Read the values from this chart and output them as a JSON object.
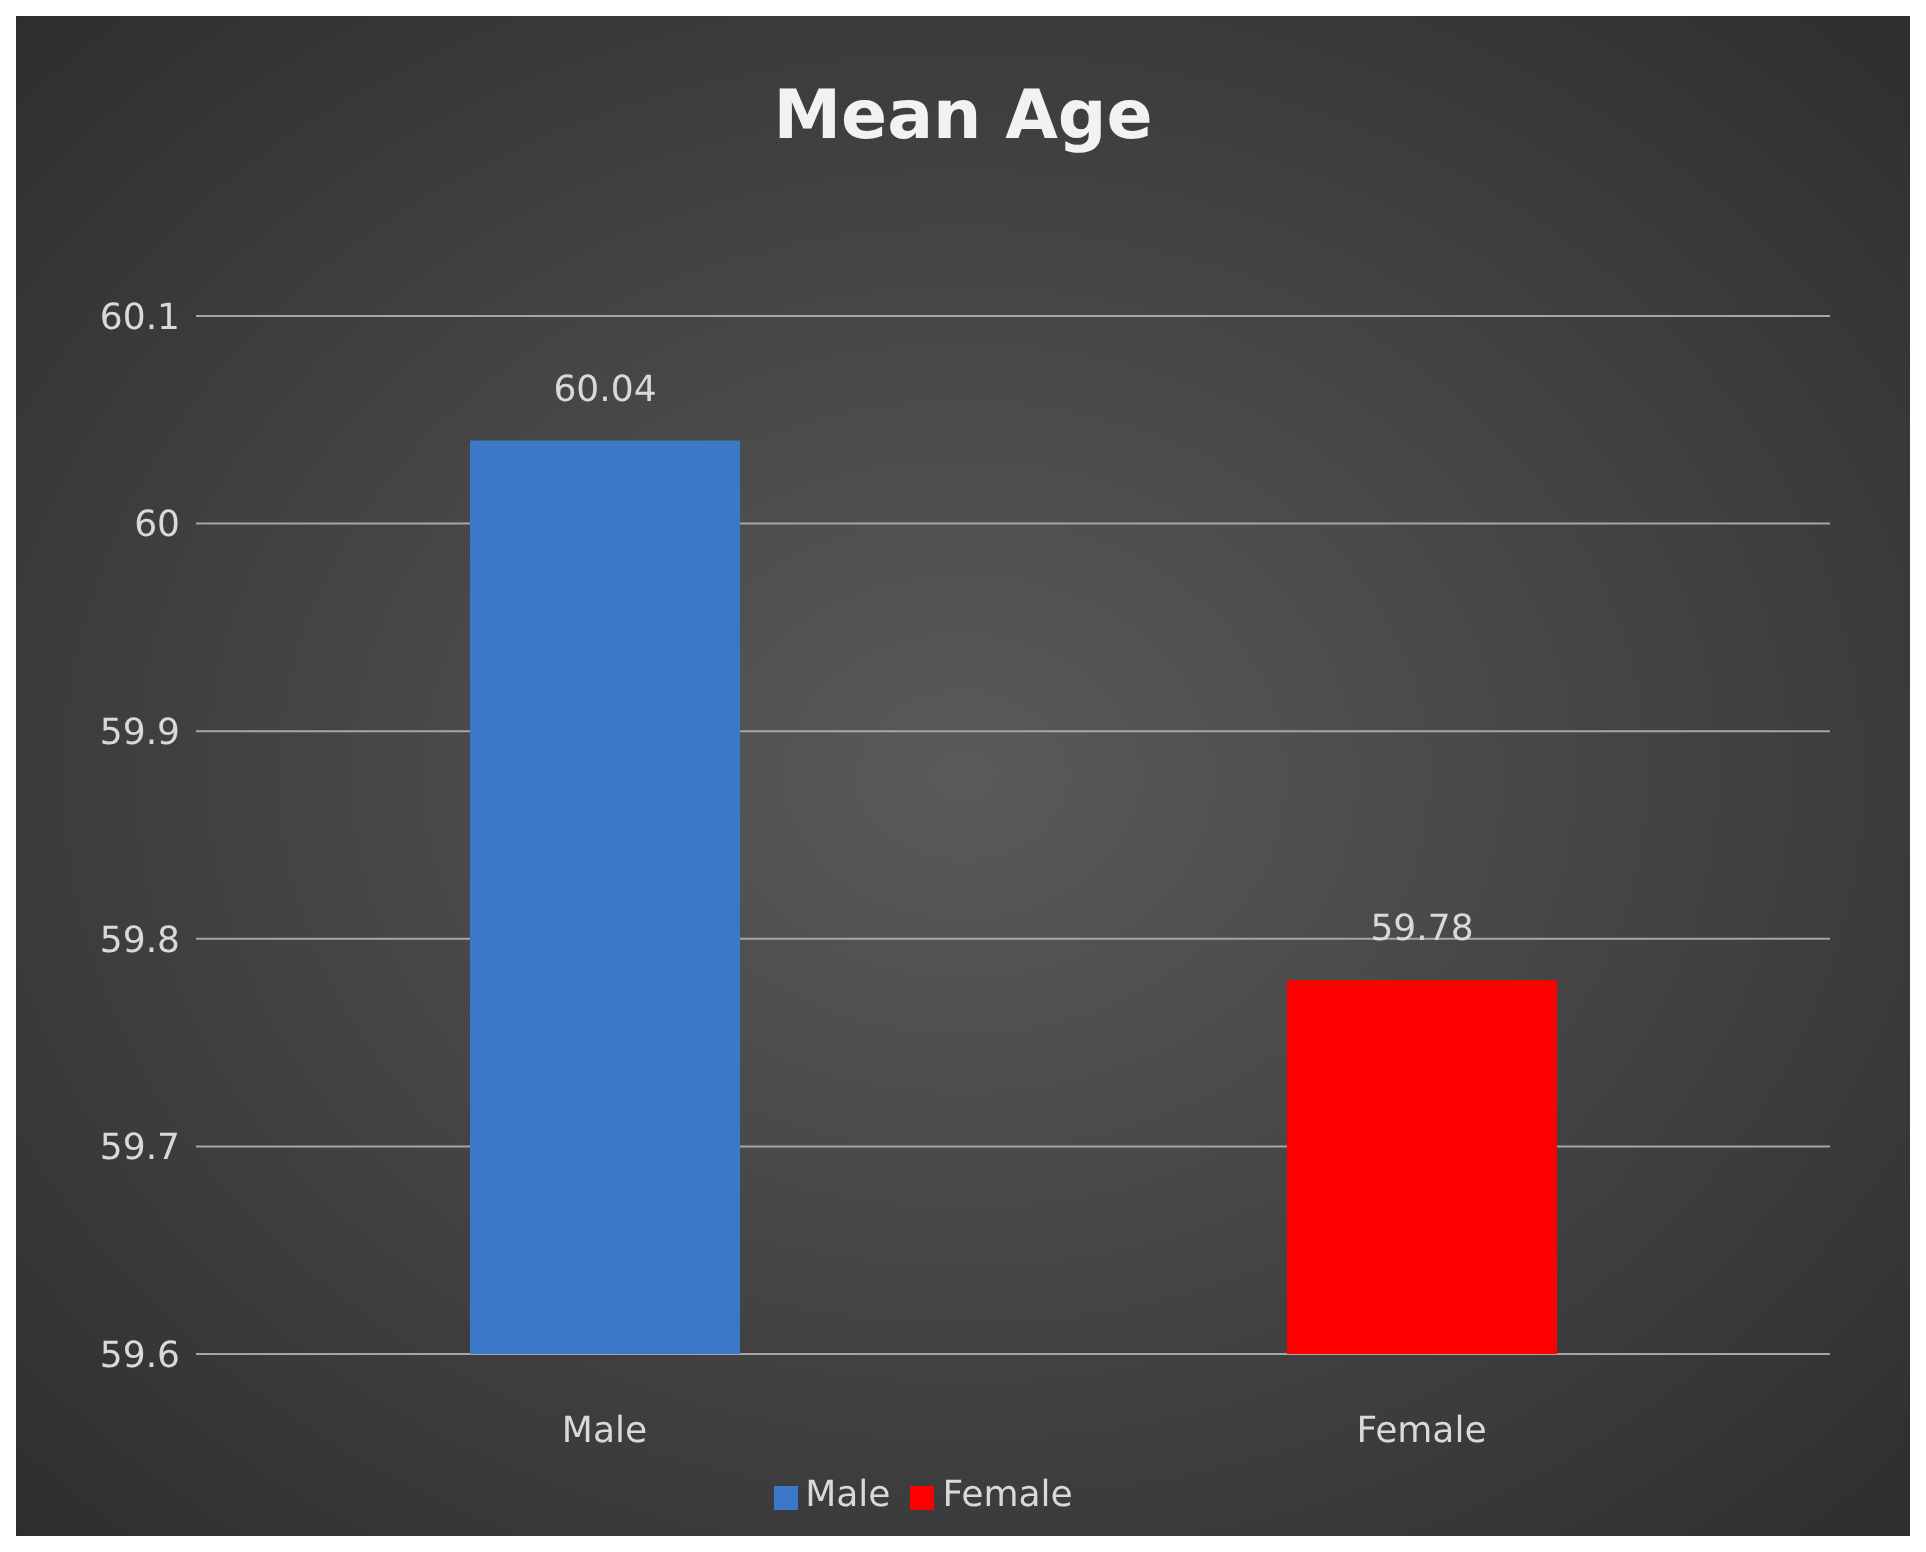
{
  "chart_data": {
    "type": "bar",
    "title": "Mean Age",
    "categories": [
      "Male",
      "Female"
    ],
    "series": [
      {
        "name": "Male",
        "color": "#3b78c8",
        "values": [
          60.04,
          null
        ]
      },
      {
        "name": "Female",
        "color": "#ff0000",
        "values": [
          null,
          59.78
        ]
      }
    ],
    "stacked": true,
    "ylim": [
      59.6,
      60.1
    ],
    "yticks": [
      59.6,
      59.7,
      59.8,
      59.9,
      60,
      60.1
    ],
    "grid": "y",
    "legend": "bottom",
    "data_labels": true
  }
}
